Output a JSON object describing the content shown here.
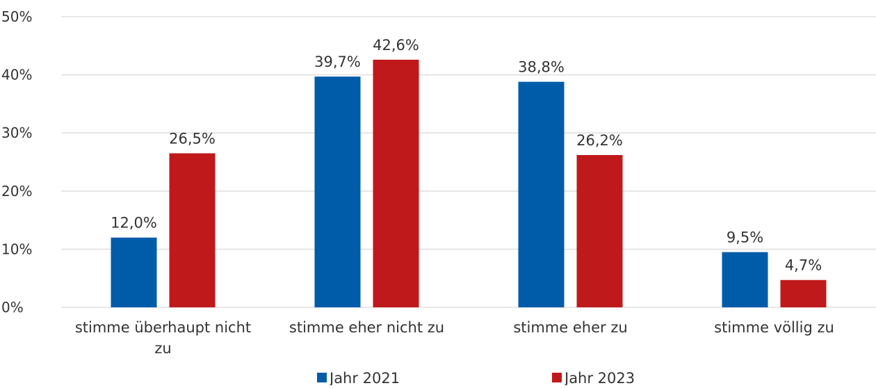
{
  "chart_data": {
    "type": "bar",
    "categories": [
      [
        "stimme überhaupt nicht",
        "zu"
      ],
      [
        "stimme eher nicht zu"
      ],
      [
        "stimme eher zu"
      ],
      [
        "stimme völlig zu"
      ]
    ],
    "series": [
      {
        "name": "Jahr 2021",
        "color": "#005ca9",
        "values": [
          12.0,
          39.7,
          38.8,
          9.5
        ],
        "labels": [
          "12,0%",
          "39,7%",
          "38,8%",
          "9,5%"
        ]
      },
      {
        "name": "Jahr 2023",
        "color": "#c0191c",
        "values": [
          26.5,
          42.6,
          26.2,
          4.7
        ],
        "labels": [
          "26,5%",
          "42,6%",
          "26,2%",
          "4,7%"
        ]
      }
    ],
    "yticks": [
      "0%",
      "10%",
      "20%",
      "30%",
      "40%",
      "50%"
    ],
    "ylim": [
      0,
      50
    ],
    "grid": true,
    "legend_position": "bottom",
    "title": "",
    "xlabel": "",
    "ylabel": ""
  }
}
